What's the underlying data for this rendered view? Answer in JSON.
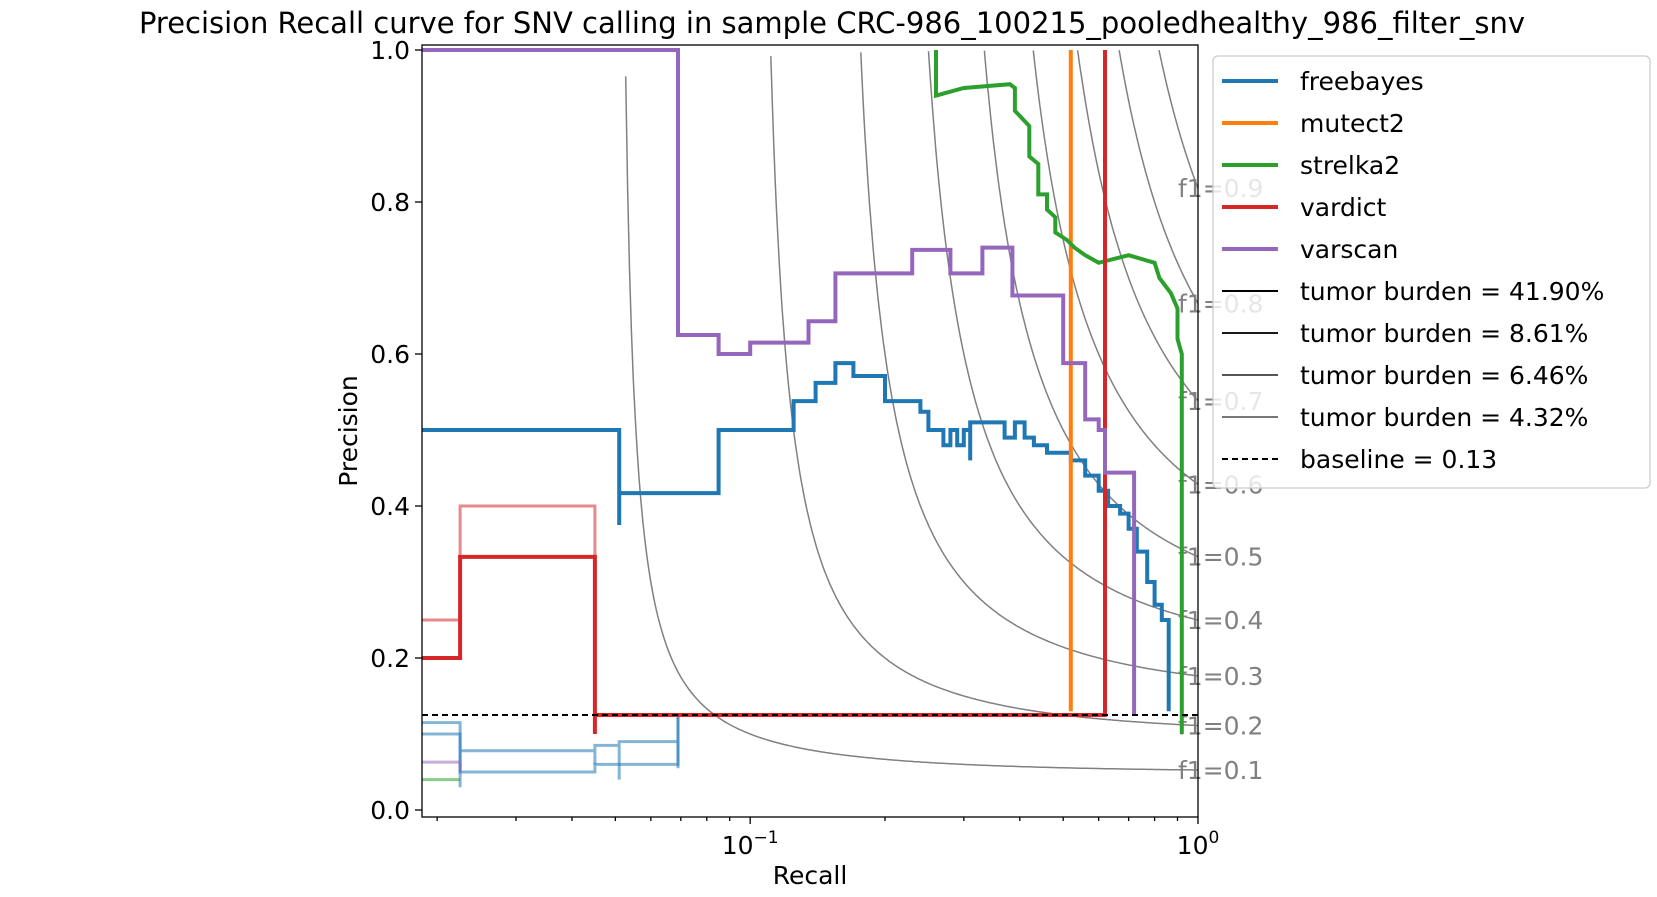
{
  "chart_data": {
    "type": "line",
    "title": "Precision Recall curve for SNV calling in sample CRC-986_100215_pooledhealthy_986_filter_snv",
    "xlabel": "Recall",
    "ylabel": "Precision",
    "xscale": "log",
    "xlim": [
      0.0185,
      1.0
    ],
    "ylim": [
      0.0,
      1.0
    ],
    "xticks": [
      {
        "value": 0.1,
        "base": "10",
        "exp": "−1"
      },
      {
        "value": 1.0,
        "base": "10",
        "exp": "0"
      }
    ],
    "yticks": [
      {
        "value": 0.0,
        "label": "0.0"
      },
      {
        "value": 0.2,
        "label": "0.2"
      },
      {
        "value": 0.4,
        "label": "0.4"
      },
      {
        "value": 0.6,
        "label": "0.6"
      },
      {
        "value": 0.8,
        "label": "0.8"
      },
      {
        "value": 1.0,
        "label": "1.0"
      }
    ],
    "grid": false,
    "legend_position": "outside upper-right",
    "f1_isolines": [
      {
        "f1": 0.1,
        "label": "f1=0.1"
      },
      {
        "f1": 0.2,
        "label": "f1=0.2"
      },
      {
        "f1": 0.3,
        "label": "f1=0.3"
      },
      {
        "f1": 0.4,
        "label": "f1=0.4"
      },
      {
        "f1": 0.5,
        "label": "f1=0.5"
      },
      {
        "f1": 0.6,
        "label": "f1=0.6"
      },
      {
        "f1": 0.7,
        "label": "f1=0.7"
      },
      {
        "f1": 0.8,
        "label": "f1=0.8"
      },
      {
        "f1": 0.9,
        "label": "f1=0.9"
      }
    ],
    "series": [
      {
        "name": "freebayes",
        "color": "#1f77b4",
        "points": [
          [
            0.0185,
            0.5
          ],
          [
            0.051,
            0.5
          ],
          [
            0.051,
            0.375
          ],
          [
            0.051,
            0.417
          ],
          [
            0.085,
            0.417
          ],
          [
            0.085,
            0.5
          ],
          [
            0.125,
            0.5
          ],
          [
            0.125,
            0.538
          ],
          [
            0.14,
            0.538
          ],
          [
            0.14,
            0.562
          ],
          [
            0.155,
            0.562
          ],
          [
            0.155,
            0.588
          ],
          [
            0.17,
            0.588
          ],
          [
            0.17,
            0.571
          ],
          [
            0.2,
            0.571
          ],
          [
            0.2,
            0.538
          ],
          [
            0.24,
            0.538
          ],
          [
            0.24,
            0.524
          ],
          [
            0.25,
            0.524
          ],
          [
            0.25,
            0.5
          ],
          [
            0.27,
            0.5
          ],
          [
            0.27,
            0.48
          ],
          [
            0.28,
            0.48
          ],
          [
            0.28,
            0.5
          ],
          [
            0.29,
            0.5
          ],
          [
            0.29,
            0.48
          ],
          [
            0.3,
            0.48
          ],
          [
            0.3,
            0.5
          ],
          [
            0.31,
            0.5
          ],
          [
            0.31,
            0.46
          ],
          [
            0.31,
            0.51
          ],
          [
            0.37,
            0.51
          ],
          [
            0.37,
            0.49
          ],
          [
            0.39,
            0.49
          ],
          [
            0.39,
            0.51
          ],
          [
            0.41,
            0.51
          ],
          [
            0.41,
            0.49
          ],
          [
            0.43,
            0.49
          ],
          [
            0.43,
            0.48
          ],
          [
            0.46,
            0.48
          ],
          [
            0.46,
            0.47
          ],
          [
            0.52,
            0.47
          ],
          [
            0.52,
            0.46
          ],
          [
            0.56,
            0.46
          ],
          [
            0.56,
            0.44
          ],
          [
            0.6,
            0.44
          ],
          [
            0.6,
            0.42
          ],
          [
            0.63,
            0.42
          ],
          [
            0.63,
            0.4
          ],
          [
            0.67,
            0.4
          ],
          [
            0.67,
            0.39
          ],
          [
            0.7,
            0.39
          ],
          [
            0.7,
            0.37
          ],
          [
            0.73,
            0.37
          ],
          [
            0.73,
            0.34
          ],
          [
            0.77,
            0.34
          ],
          [
            0.77,
            0.3
          ],
          [
            0.8,
            0.3
          ],
          [
            0.8,
            0.27
          ],
          [
            0.83,
            0.27
          ],
          [
            0.83,
            0.25
          ],
          [
            0.86,
            0.25
          ],
          [
            0.86,
            0.13
          ]
        ]
      },
      {
        "name": "mutect2",
        "color": "#ff7f0e",
        "points": [
          [
            0.52,
            0.13
          ],
          [
            0.52,
            1.0
          ]
        ]
      },
      {
        "name": "strelka2",
        "color": "#2ca02c",
        "points": [
          [
            0.26,
            1.0
          ],
          [
            0.26,
            0.94
          ],
          [
            0.3,
            0.95
          ],
          [
            0.38,
            0.955
          ],
          [
            0.39,
            0.95
          ],
          [
            0.39,
            0.92
          ],
          [
            0.42,
            0.9
          ],
          [
            0.42,
            0.86
          ],
          [
            0.44,
            0.85
          ],
          [
            0.44,
            0.81
          ],
          [
            0.46,
            0.81
          ],
          [
            0.46,
            0.79
          ],
          [
            0.48,
            0.78
          ],
          [
            0.48,
            0.76
          ],
          [
            0.51,
            0.75
          ],
          [
            0.53,
            0.74
          ],
          [
            0.56,
            0.73
          ],
          [
            0.6,
            0.72
          ],
          [
            0.7,
            0.73
          ],
          [
            0.8,
            0.72
          ],
          [
            0.82,
            0.7
          ],
          [
            0.87,
            0.68
          ],
          [
            0.9,
            0.66
          ],
          [
            0.9,
            0.62
          ],
          [
            0.92,
            0.6
          ],
          [
            0.92,
            0.1
          ]
        ]
      },
      {
        "name": "vardict",
        "color": "#d62728",
        "points": [
          [
            0.0185,
            0.2
          ],
          [
            0.0225,
            0.2
          ],
          [
            0.0225,
            0.333
          ],
          [
            0.045,
            0.333
          ],
          [
            0.045,
            0.1
          ],
          [
            0.045,
            0.125
          ],
          [
            0.62,
            0.125
          ],
          [
            0.62,
            1.0
          ]
        ]
      },
      {
        "name": "varscan",
        "color": "#9467bd",
        "points": [
          [
            0.0185,
            1.0
          ],
          [
            0.069,
            1.0
          ],
          [
            0.069,
            0.625
          ],
          [
            0.085,
            0.625
          ],
          [
            0.085,
            0.6
          ],
          [
            0.1,
            0.6
          ],
          [
            0.1,
            0.615
          ],
          [
            0.135,
            0.615
          ],
          [
            0.135,
            0.643
          ],
          [
            0.155,
            0.643
          ],
          [
            0.155,
            0.706
          ],
          [
            0.23,
            0.706
          ],
          [
            0.23,
            0.737
          ],
          [
            0.28,
            0.737
          ],
          [
            0.28,
            0.706
          ],
          [
            0.33,
            0.706
          ],
          [
            0.33,
            0.74
          ],
          [
            0.385,
            0.74
          ],
          [
            0.385,
            0.677
          ],
          [
            0.5,
            0.677
          ],
          [
            0.5,
            0.588
          ],
          [
            0.56,
            0.588
          ],
          [
            0.56,
            0.514
          ],
          [
            0.6,
            0.514
          ],
          [
            0.6,
            0.5
          ],
          [
            0.62,
            0.5
          ],
          [
            0.62,
            0.444
          ],
          [
            0.72,
            0.444
          ],
          [
            0.72,
            0.125
          ]
        ]
      }
    ],
    "faint_series": [
      {
        "color": "#d62728",
        "points": [
          [
            0.0185,
            0.25
          ],
          [
            0.0225,
            0.25
          ],
          [
            0.0225,
            0.4
          ],
          [
            0.045,
            0.4
          ],
          [
            0.045,
            0.125
          ]
        ]
      },
      {
        "color": "#1f77b4",
        "points": [
          [
            0.0185,
            0.115
          ],
          [
            0.0225,
            0.115
          ],
          [
            0.0225,
            0.03
          ],
          [
            0.0225,
            0.078
          ],
          [
            0.045,
            0.078
          ],
          [
            0.045,
            0.06
          ],
          [
            0.045,
            0.085
          ],
          [
            0.051,
            0.085
          ],
          [
            0.051,
            0.04
          ],
          [
            0.051,
            0.09
          ],
          [
            0.069,
            0.09
          ],
          [
            0.069,
            0.055
          ],
          [
            0.069,
            0.125
          ]
        ]
      },
      {
        "color": "#1f77b4",
        "points": [
          [
            0.0185,
            0.1
          ],
          [
            0.0225,
            0.1
          ],
          [
            0.0225,
            0.05
          ],
          [
            0.045,
            0.05
          ],
          [
            0.045,
            0.06
          ],
          [
            0.051,
            0.06
          ],
          [
            0.069,
            0.06
          ],
          [
            0.069,
            0.125
          ]
        ]
      },
      {
        "color": "#9467bd",
        "points": [
          [
            0.0185,
            0.063
          ],
          [
            0.0225,
            0.063
          ],
          [
            0.0225,
            0.05
          ]
        ]
      },
      {
        "color": "#2ca02c",
        "points": [
          [
            0.0185,
            0.04
          ],
          [
            0.0225,
            0.04
          ]
        ]
      }
    ],
    "legend": [
      {
        "label": "freebayes",
        "color": "#1f77b4",
        "style": "thick"
      },
      {
        "label": "mutect2",
        "color": "#ff7f0e",
        "style": "thick"
      },
      {
        "label": "strelka2",
        "color": "#2ca02c",
        "style": "thick"
      },
      {
        "label": "vardict",
        "color": "#d62728",
        "style": "thick"
      },
      {
        "label": "varscan",
        "color": "#9467bd",
        "style": "thick"
      },
      {
        "label": "tumor burden = 41.90%",
        "color": "#000000",
        "style": "thin"
      },
      {
        "label": "tumor burden = 8.61%",
        "color": "#1a1a1a",
        "style": "thin"
      },
      {
        "label": "tumor burden = 6.46%",
        "color": "#555555",
        "style": "thin"
      },
      {
        "label": "tumor burden = 4.32%",
        "color": "#777777",
        "style": "thin"
      },
      {
        "label": "baseline = 0.13",
        "color": "#000000",
        "style": "dashed"
      }
    ],
    "baseline": 0.125
  }
}
